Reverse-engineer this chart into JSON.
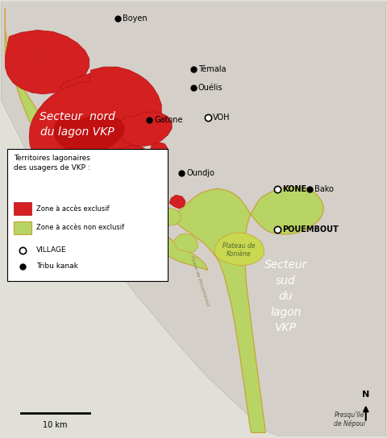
{
  "bg_color": "#c8d8e8",
  "outer_bg": "#e0e0d8",
  "land_color": "#d4cfc8",
  "zone_excl_color": "#d42020",
  "zone_excl_dark": "#b01010",
  "zone_nonexcl_color": "#b8d464",
  "zone_nonexcl_border": "#c8a030",
  "plateau_koni_color": "#c8d850",
  "legend_title": "Territoires lagonaires\ndes usagers de VKP :",
  "scale_label": "10 km",
  "north_label": "N"
}
